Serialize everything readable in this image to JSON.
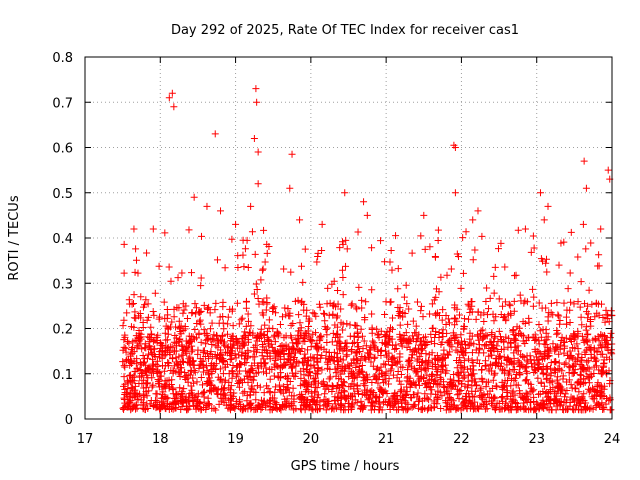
{
  "chart_data": {
    "type": "scatter",
    "title": "Day 292 of 2025, Rate Of TEC Index for receiver cas1",
    "xlabel": "GPS time / hours",
    "ylabel": "ROTI / TECUs",
    "xlim": [
      17,
      24
    ],
    "ylim": [
      0,
      0.8
    ],
    "xticks": [
      "17",
      "18",
      "19",
      "20",
      "21",
      "22",
      "23",
      "24"
    ],
    "yticks": [
      "0",
      "0.1",
      "0.2",
      "0.3",
      "0.4",
      "0.5",
      "0.6",
      "0.7",
      "0.8"
    ],
    "grid": true,
    "marker": "plus",
    "color": "#ff0000",
    "x_start": 17.5,
    "x_end": 24.0,
    "peaks": [
      {
        "x": 18.12,
        "y": 0.71
      },
      {
        "x": 18.16,
        "y": 0.72
      },
      {
        "x": 18.18,
        "y": 0.69
      },
      {
        "x": 18.73,
        "y": 0.63
      },
      {
        "x": 19.27,
        "y": 0.73
      },
      {
        "x": 19.28,
        "y": 0.7
      },
      {
        "x": 19.25,
        "y": 0.62
      },
      {
        "x": 19.3,
        "y": 0.59
      },
      {
        "x": 19.75,
        "y": 0.585
      },
      {
        "x": 21.9,
        "y": 0.605
      },
      {
        "x": 21.92,
        "y": 0.6
      },
      {
        "x": 23.63,
        "y": 0.57
      },
      {
        "x": 23.66,
        "y": 0.51
      },
      {
        "x": 23.95,
        "y": 0.55
      },
      {
        "x": 23.97,
        "y": 0.53
      },
      {
        "x": 19.72,
        "y": 0.51
      },
      {
        "x": 20.45,
        "y": 0.5
      },
      {
        "x": 23.05,
        "y": 0.5
      },
      {
        "x": 21.92,
        "y": 0.5
      },
      {
        "x": 19.3,
        "y": 0.52
      },
      {
        "x": 18.45,
        "y": 0.49
      },
      {
        "x": 18.62,
        "y": 0.47
      },
      {
        "x": 18.8,
        "y": 0.46
      },
      {
        "x": 19.2,
        "y": 0.47
      },
      {
        "x": 20.7,
        "y": 0.48
      },
      {
        "x": 21.5,
        "y": 0.45
      },
      {
        "x": 22.22,
        "y": 0.46
      },
      {
        "x": 23.15,
        "y": 0.47
      },
      {
        "x": 23.62,
        "y": 0.43
      },
      {
        "x": 17.65,
        "y": 0.42
      },
      {
        "x": 19.0,
        "y": 0.43
      },
      {
        "x": 19.85,
        "y": 0.44
      },
      {
        "x": 20.15,
        "y": 0.43
      },
      {
        "x": 20.75,
        "y": 0.45
      },
      {
        "x": 22.15,
        "y": 0.44
      },
      {
        "x": 22.85,
        "y": 0.42
      },
      {
        "x": 23.1,
        "y": 0.44
      },
      {
        "x": 23.85,
        "y": 0.42
      }
    ]
  }
}
